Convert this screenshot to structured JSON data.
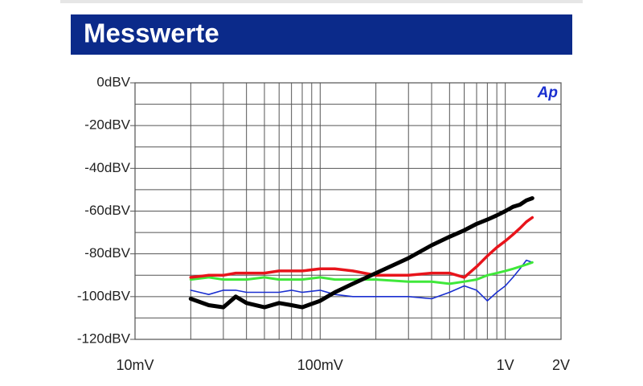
{
  "chart_data": {
    "type": "line",
    "title": "Messwerte",
    "logo": "Ap",
    "xscale": "log",
    "grid": true,
    "xlim": [
      0.01,
      2
    ],
    "xticks": [
      {
        "value": 0.01,
        "label": "10mV"
      },
      {
        "value": 0.1,
        "label": "100mV"
      },
      {
        "value": 1,
        "label": "1V"
      },
      {
        "value": 2,
        "label": "2V"
      }
    ],
    "xminorticks": [
      0.02,
      0.03,
      0.04,
      0.05,
      0.06,
      0.07,
      0.08,
      0.09,
      0.2,
      0.3,
      0.4,
      0.5,
      0.6,
      0.7,
      0.8,
      0.9
    ],
    "ylim": [
      -120,
      0
    ],
    "yticks": [
      {
        "value": 0,
        "label": "0dBV"
      },
      {
        "value": -20,
        "label": "-20dBV"
      },
      {
        "value": -40,
        "label": "-40dBV"
      },
      {
        "value": -60,
        "label": "-60dBV"
      },
      {
        "value": -80,
        "label": "-80dBV"
      },
      {
        "value": -100,
        "label": "-100dBV"
      },
      {
        "value": -120,
        "label": "-120dBV"
      }
    ],
    "yminorticks": [
      -10,
      -30,
      -50,
      -70,
      -90,
      -110
    ],
    "x": [
      0.02,
      0.025,
      0.03,
      0.035,
      0.04,
      0.05,
      0.06,
      0.07,
      0.08,
      0.1,
      0.12,
      0.15,
      0.2,
      0.3,
      0.4,
      0.5,
      0.6,
      0.7,
      0.8,
      0.9,
      1.0,
      1.1,
      1.2,
      1.3,
      1.4
    ],
    "series": [
      {
        "color": "#1a2fd0",
        "values": [
          -97,
          -99,
          -97,
          -97,
          -98,
          -98,
          -98,
          -97,
          -98,
          -97,
          -99,
          -100,
          -100,
          -100,
          -101,
          -98,
          -95,
          -97,
          -102,
          -98,
          -95,
          -91,
          -87,
          -83,
          -84
        ]
      },
      {
        "color": "#3fe83a",
        "values": [
          -92,
          -91,
          -92,
          -92,
          -92,
          -91,
          -92,
          -92,
          -92,
          -91,
          -92,
          -92,
          -92,
          -93,
          -93,
          -94,
          -93,
          -92,
          -90,
          -89,
          -88,
          -87,
          -86,
          -85,
          -84
        ]
      },
      {
        "color": "#e8141b",
        "values": [
          -91,
          -90,
          -90,
          -89,
          -89,
          -89,
          -88,
          -88,
          -88,
          -87,
          -87,
          -88,
          -90,
          -90,
          -89,
          -89,
          -91,
          -86,
          -81,
          -77,
          -74,
          -71,
          -68,
          -65,
          -63
        ]
      },
      {
        "color": "#000000",
        "values": [
          -101,
          -104,
          -105,
          -100,
          -103,
          -105,
          -103,
          -104,
          -105,
          -102,
          -98,
          -94,
          -89,
          -82,
          -76,
          -72,
          -69,
          -66,
          -64,
          -62,
          -60,
          -58,
          -57,
          -55,
          -54
        ]
      }
    ]
  }
}
